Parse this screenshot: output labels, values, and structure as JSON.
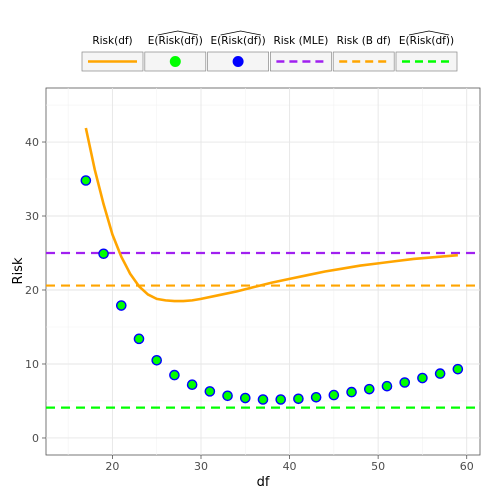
{
  "chart_data": {
    "type": "line",
    "xlabel": "df",
    "ylabel": "Risk",
    "xlim": [
      12.5,
      61.5
    ],
    "ylim": [
      -2.3,
      47.3
    ],
    "x_ticks": [
      20,
      30,
      40,
      50,
      60
    ],
    "y_ticks": [
      0,
      10,
      20,
      30,
      40
    ],
    "grid": true,
    "legend_position": "top",
    "series": [
      {
        "name": "Risk(df)",
        "kind": "line",
        "color": "#FFA500",
        "dash": "solid",
        "x": [
          17,
          18,
          19,
          20,
          21,
          22,
          23,
          24,
          25,
          26,
          27,
          28,
          29,
          30,
          32,
          34,
          36,
          38,
          40,
          42,
          44,
          46,
          48,
          50,
          52,
          54,
          56,
          58,
          59
        ],
        "y": [
          41.9,
          36.3,
          31.6,
          27.5,
          24.5,
          22.2,
          20.5,
          19.4,
          18.8,
          18.6,
          18.5,
          18.5,
          18.6,
          18.8,
          19.3,
          19.8,
          20.4,
          21.0,
          21.5,
          22.0,
          22.5,
          22.9,
          23.3,
          23.6,
          23.9,
          24.2,
          24.4,
          24.6,
          24.7
        ]
      },
      {
        "name": "E(Risk(df)) hat",
        "kind": "points",
        "fill": "#00FF00",
        "stroke": "#0000FF",
        "x": [
          17,
          19,
          21,
          23,
          25,
          27,
          29,
          31,
          33,
          35,
          37,
          39,
          41,
          43,
          45,
          47,
          49,
          51,
          53,
          55,
          57,
          59
        ],
        "y": [
          34.8,
          24.9,
          17.9,
          13.4,
          10.5,
          8.5,
          7.2,
          6.3,
          5.7,
          5.4,
          5.2,
          5.2,
          5.3,
          5.5,
          5.8,
          6.2,
          6.6,
          7.0,
          7.5,
          8.1,
          8.7,
          9.3
        ]
      },
      {
        "name": "Risk (MLE)",
        "kind": "hline",
        "color": "#A020F0",
        "dash": "dashed",
        "y": 25.0
      },
      {
        "name": "Risk (B hat df)",
        "kind": "hline",
        "color": "#FFA500",
        "dash": "dashed",
        "y": 20.6
      },
      {
        "name": "E(Risk(df hat)) hat",
        "kind": "hline",
        "color": "#00FF00",
        "dash": "dashed",
        "y": 4.1
      }
    ],
    "legend": [
      {
        "label": "Risk(df)",
        "key": "line",
        "color": "#FFA500",
        "dash": "solid"
      },
      {
        "label": "E(Risk(df))",
        "hat": "Risk(df)",
        "key": "point",
        "fill": "#00FF00",
        "stroke": "#00FF00"
      },
      {
        "label": "E(Risk(df))",
        "hat": "Risk(df)",
        "key": "point",
        "fill": "#0000FF",
        "stroke": "#0000FF"
      },
      {
        "label": "Risk (MLE)",
        "key": "line",
        "color": "#A020F0",
        "dash": "dashed"
      },
      {
        "label": "Risk (B df)",
        "key": "line",
        "color": "#FFA500",
        "dash": "dashed"
      },
      {
        "label": "E(Risk(df))",
        "hat": "Risk(df)",
        "key": "line",
        "color": "#00FF00",
        "dash": "dashed"
      }
    ]
  }
}
